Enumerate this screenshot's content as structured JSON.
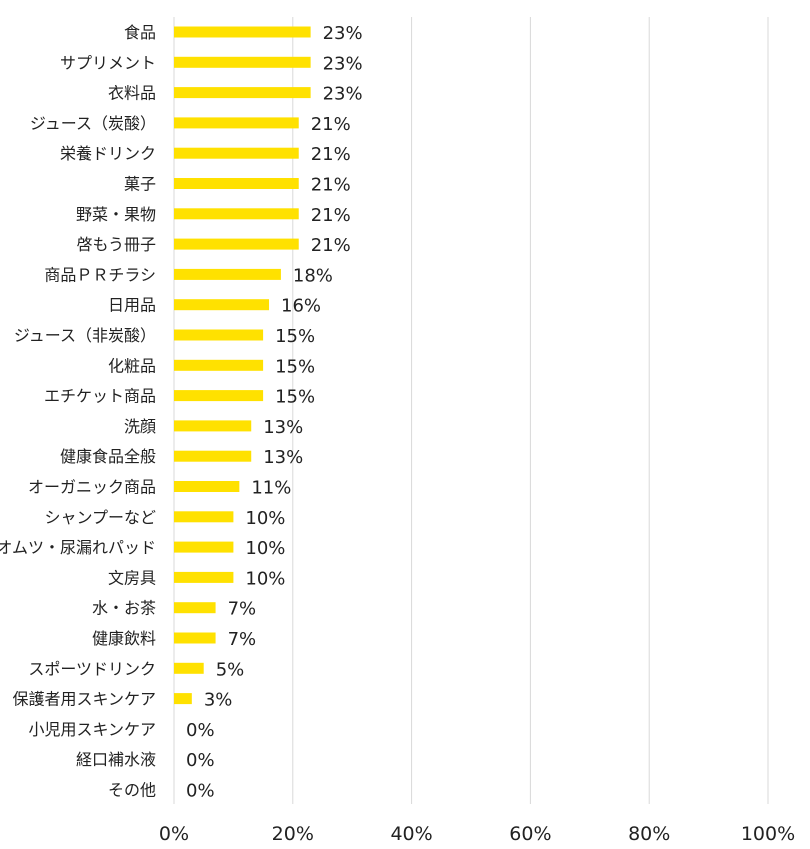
{
  "chart_data": {
    "type": "bar",
    "orientation": "horizontal",
    "bar_color": "#FFE100",
    "grid_color": "#d9d9d9",
    "xlim": [
      0,
      100
    ],
    "xticks": [
      0,
      20,
      40,
      60,
      80,
      100
    ],
    "tick_format": "{v}%",
    "value_format": "{v}%",
    "grid": true,
    "categories": [
      "食品",
      "サプリメント",
      "衣料品",
      "ジュース（炭酸）",
      "栄養ドリンク",
      "菓子",
      "野菜・果物",
      "啓もう冊子",
      "商品ＰＲチラシ",
      "日用品",
      "ジュース（非炭酸）",
      "化粧品",
      "エチケット商品",
      "洗顔",
      "健康食品全般",
      "オーガニック商品",
      "シャンプーなど",
      "オムツ・尿漏れパッド",
      "文房具",
      "水・お茶",
      "健康飲料",
      "スポーツドリンク",
      "保護者用スキンケア",
      "小児用スキンケア",
      "経口補水液",
      "その他"
    ],
    "values": [
      23,
      23,
      23,
      21,
      21,
      21,
      21,
      21,
      18,
      16,
      15,
      15,
      15,
      13,
      13,
      11,
      10,
      10,
      10,
      7,
      7,
      5,
      3,
      0,
      0,
      0
    ]
  }
}
